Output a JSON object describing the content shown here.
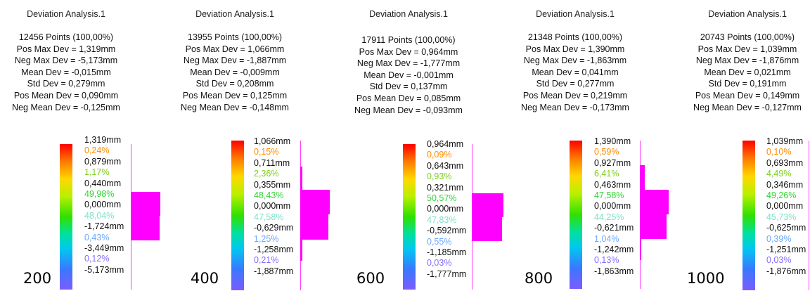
{
  "panels": [
    {
      "title": "Deviation Analysis.1",
      "stats": [
        "12456 Points (100,00%)",
        "Pos Max Dev = 1,319mm",
        "Neg Max Dev = -5,173mm",
        "Mean Dev = -0,015mm",
        "Std Dev = 0,279mm",
        "Pos Mean Dev = 0,090mm",
        "Neg Mean Dev = -0,125mm"
      ],
      "legend": [
        "1,319mm",
        "0,24%",
        "0,879mm",
        "1,17%",
        "0,440mm",
        "49,98%",
        "0,000mm",
        "48,04%",
        "-1,724mm",
        "0,43%",
        "-3,449mm",
        "0,12%",
        "-5,173mm"
      ],
      "step": "200"
    },
    {
      "title": "Deviation Analysis.1",
      "stats": [
        "13955 Points (100,00%)",
        "Pos Max Dev = 1,066mm",
        "Neg Max Dev = -1,887mm",
        "Mean Dev = -0,009mm",
        "Std Dev = 0,208mm",
        "Pos Mean Dev = 0,125mm",
        "Neg Mean Dev = -0,148mm"
      ],
      "legend": [
        "1,066mm",
        "0,15%",
        "0,711mm",
        "2,36%",
        "0,355mm",
        "48,43%",
        "0,000mm",
        "47,58%",
        "-0,629mm",
        "1,25%",
        "-1,258mm",
        "0,21%",
        "-1,887mm"
      ],
      "step": "400"
    },
    {
      "title": "Deviation Analysis.1",
      "stats": [
        "17911 Points (100,00%)",
        "Pos Max Dev = 0,964mm",
        "Neg Max Dev = -1,777mm",
        "Mean Dev = -0,001mm",
        "Std Dev = 0,137mm",
        "Pos Mean Dev = 0,085mm",
        "Neg Mean Dev = -0,093mm"
      ],
      "legend": [
        "0,964mm",
        "0,09%",
        "0,643mm",
        "0,93%",
        "0,321mm",
        "50,57%",
        "0,000mm",
        "47,83%",
        "-0,592mm",
        "0,55%",
        "-1,185mm",
        "0,03%",
        "-1,777mm"
      ],
      "step": "600"
    },
    {
      "title": "Deviation Analysis.1",
      "stats": [
        "21348 Points (100,00%)",
        "Pos Max Dev = 1,390mm",
        "Neg Max Dev = -1,863mm",
        "Mean Dev = 0,041mm",
        "Std Dev = 0,277mm",
        "Pos Mean Dev = 0,219mm",
        "Neg Mean Dev = -0,173mm"
      ],
      "legend": [
        "1,390mm",
        "0,59%",
        "0,927mm",
        "6,41%",
        "0,463mm",
        "47,58%",
        "0,000mm",
        "44,25%",
        "-0,621mm",
        "1,04%",
        "-1,242mm",
        "0,13%",
        "-1,863mm"
      ],
      "step": "800"
    },
    {
      "title": "Deviation Analysis.1",
      "stats": [
        "20743 Points (100,00%)",
        "Pos Max Dev = 1,039mm",
        "Neg Max Dev = -1,876mm",
        "Mean Dev = 0,021mm",
        "Std Dev = 0,191mm",
        "Pos Mean Dev = 0,149mm",
        "Neg Mean Dev = -0,127mm"
      ],
      "legend": [
        "1,039mm",
        "0,10%",
        "0,693mm",
        "4,49%",
        "0,346mm",
        "49,26%",
        "0,000mm",
        "45,73%",
        "-0,625mm",
        "0,39%",
        "-1,251mm",
        "0,03%",
        "-1,876mm"
      ],
      "step": "1000"
    }
  ]
}
